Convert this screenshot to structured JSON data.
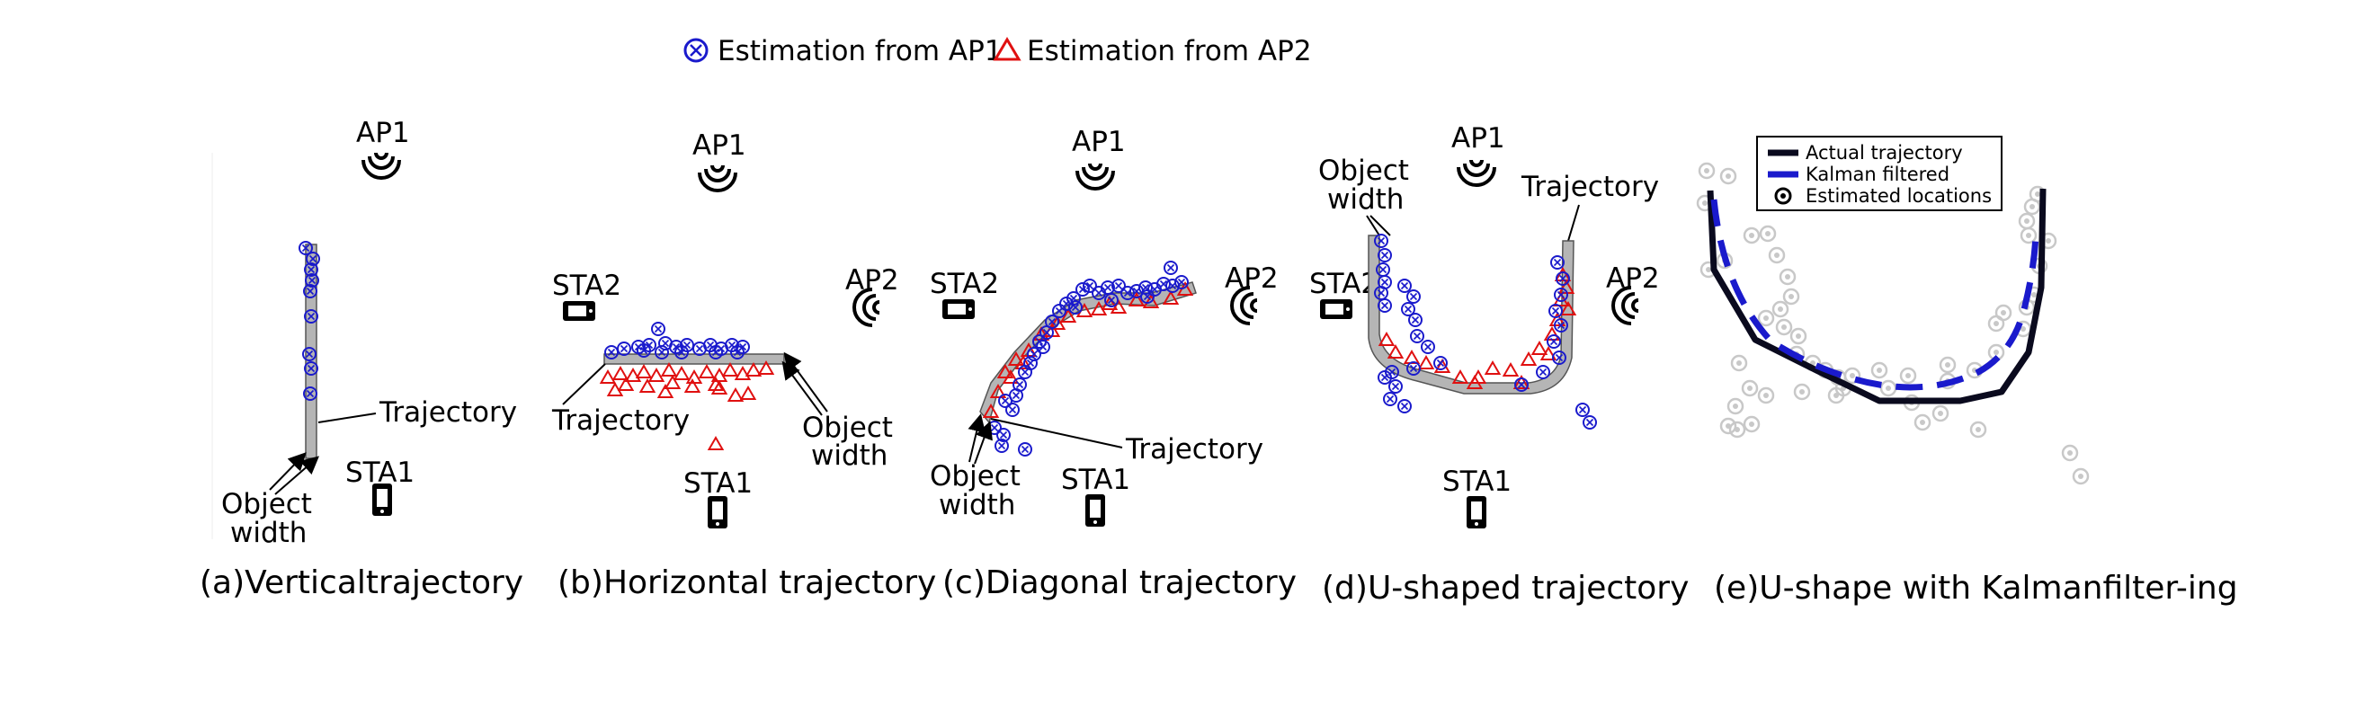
{
  "legend": {
    "ap1_label": "Estimation from AP1",
    "ap2_label": "Estimation from AP2",
    "ap1_color": "#1a1acc",
    "ap2_color": "#e01010"
  },
  "labels": {
    "ap1": "AP1",
    "ap2": "AP2",
    "sta1": "STA1",
    "sta2": "STA2",
    "trajectory": "Trajectory",
    "object": "Object",
    "width": "width"
  },
  "panels": {
    "a": {
      "caption": "(a)Verticaltrajectory"
    },
    "b": {
      "caption": "(b)Horizontal trajectory"
    },
    "c": {
      "caption": "(c)Diagonal trajectory"
    },
    "d": {
      "caption": "(d)U-shaped trajectory"
    },
    "e": {
      "caption": "(e)U-shape with Kalmanfilter-ing",
      "legend_actual": "Actual trajectory",
      "legend_kalman": "Kalman filtered",
      "legend_estimated": "Estimated locations",
      "actual_color": "#0a0a1e",
      "kalman_color": "#1a1acc",
      "estimate_color": "#c8c8c8"
    }
  },
  "icons": {
    "access_point": "wifi-signal-icon",
    "station": "phone-icon",
    "station_wide": "tablet-icon"
  }
}
